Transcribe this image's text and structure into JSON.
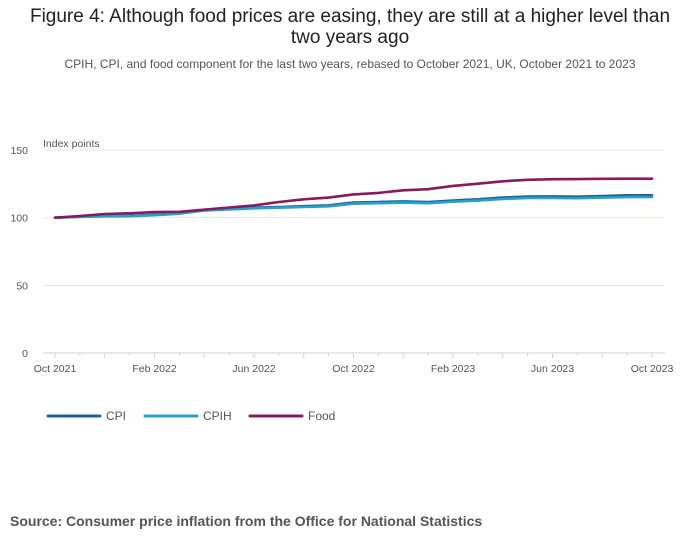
{
  "title": "Figure 4: Although food prices are easing, they are still at a higher level than two years ago",
  "subtitle": "CPIH, CPI, and food component for the last two years, rebased to October 2021, UK, October 2021 to 2023",
  "source": "Source: Consumer price inflation from the Office for National Statistics",
  "colors": {
    "CPI": "#206095",
    "CPIH": "#27a0cc",
    "Food": "#871a5b",
    "grid": "#e6e6e6",
    "axis": "#c8d3dc"
  },
  "chart_data": {
    "type": "line",
    "title": "Figure 4: Although food prices are easing, they are still at a higher level than two years ago",
    "ylabel": "Index points",
    "xlabel": "",
    "ylim": [
      0,
      150
    ],
    "yticks": [
      0,
      50,
      100,
      150
    ],
    "grid": true,
    "legend_position": "bottom-left",
    "x": [
      "Oct 2021",
      "Nov 2021",
      "Dec 2021",
      "Jan 2022",
      "Feb 2022",
      "Mar 2022",
      "Apr 2022",
      "May 2022",
      "Jun 2022",
      "Jul 2022",
      "Aug 2022",
      "Sep 2022",
      "Oct 2022",
      "Nov 2022",
      "Dec 2022",
      "Jan 2023",
      "Feb 2023",
      "Mar 2023",
      "Apr 2023",
      "May 2023",
      "Jun 2023",
      "Jul 2023",
      "Aug 2023",
      "Sep 2023",
      "Oct 2023"
    ],
    "xtick_labels": [
      {
        "index": 0,
        "label": "Oct 2021"
      },
      {
        "index": 4,
        "label": "Feb 2022"
      },
      {
        "index": 8,
        "label": "Jun 2022"
      },
      {
        "index": 12,
        "label": "Oct 2022"
      },
      {
        "index": 16,
        "label": "Feb 2023"
      },
      {
        "index": 20,
        "label": "Jun 2023"
      },
      {
        "index": 24,
        "label": "Oct 2023"
      }
    ],
    "series": [
      {
        "name": "CPI",
        "values": [
          100,
          100.7,
          101.2,
          101.3,
          102.1,
          103.2,
          105.7,
          106.5,
          107.4,
          107.9,
          108.5,
          109.1,
          111.2,
          111.6,
          112.0,
          111.5,
          112.7,
          113.6,
          114.9,
          115.6,
          115.7,
          115.5,
          116.0,
          116.5,
          116.5
        ]
      },
      {
        "name": "CPIH",
        "values": [
          100,
          100.6,
          101.0,
          101.1,
          101.8,
          102.9,
          105.4,
          106.1,
          106.9,
          107.4,
          107.9,
          108.4,
          110.3,
          110.7,
          111.1,
          110.7,
          111.8,
          112.6,
          113.8,
          114.5,
          114.6,
          114.4,
          114.8,
          115.2,
          115.3
        ]
      },
      {
        "name": "Food",
        "values": [
          100,
          101.2,
          102.7,
          103.2,
          104.1,
          104.3,
          105.9,
          107.5,
          109.1,
          111.6,
          113.6,
          114.8,
          117.2,
          118.3,
          120.2,
          121.0,
          123.5,
          125.1,
          126.9,
          128.0,
          128.4,
          128.5,
          128.7,
          128.8,
          128.8
        ]
      }
    ]
  }
}
